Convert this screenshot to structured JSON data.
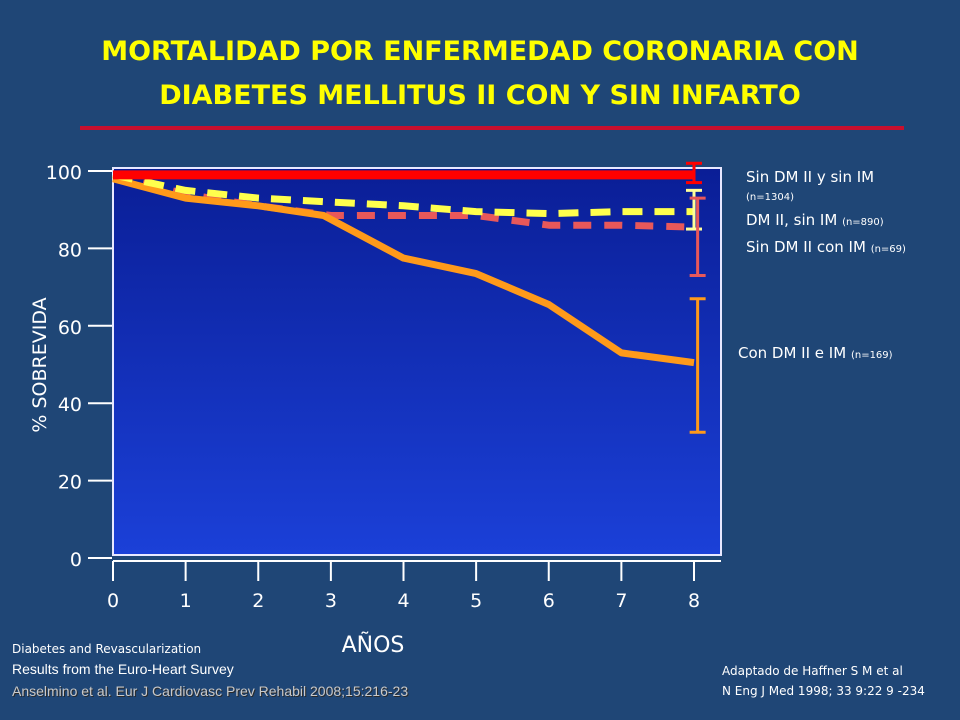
{
  "title": {
    "line1": "MORTALIDAD POR ENFERMEDAD CORONARIA CON",
    "line2": "DIABETES MELLITUS II CON Y SIN INFARTO"
  },
  "colors": {
    "background": "#1f4676",
    "title": "#ffff00",
    "rule": "#c8102e",
    "series_no_dm_no_mi": "#ff0000",
    "series_dm_no_mi": "#ffff4d",
    "series_no_dm_mi": "#e8585a",
    "series_dm_mi": "#ff9a1a"
  },
  "legend": [
    {
      "label": "Sin DM II y sin  IM",
      "n": "(n=1304)"
    },
    {
      "label": "DM II, sin  IM",
      "n": "(n=890)"
    },
    {
      "label": "Sin DM II  con IM",
      "n": "(n=69)"
    },
    {
      "label": "Con DM II e IM",
      "n": "(n=169)"
    }
  ],
  "chart_data": {
    "type": "line",
    "xlabel": "AÑOS",
    "ylabel": "% SOBREVIDA",
    "xlim": [
      0,
      8
    ],
    "ylim": [
      0,
      100
    ],
    "x_ticks": [
      "0",
      "1",
      "2",
      "3",
      "4",
      "5",
      "6",
      "7",
      "8"
    ],
    "y_ticks": [
      "0",
      "20",
      "40",
      "60",
      "80",
      "100"
    ],
    "series": [
      {
        "name": "Sin DM II y sin  IM (n=1304)",
        "color": "#ff0000",
        "style": "solid",
        "x": [
          0,
          8
        ],
        "y": [
          99,
          99
        ],
        "error_bar": {
          "x": 8,
          "low": 97,
          "high": 102
        }
      },
      {
        "name": "DM II, sin  IM (n=890)",
        "color": "#ffff4d",
        "style": "dashed",
        "x": [
          0,
          1,
          2,
          3,
          4,
          5,
          6,
          7,
          8
        ],
        "y": [
          99,
          95,
          93,
          92,
          91,
          89.5,
          89,
          89.5,
          89.5
        ],
        "error_bar": {
          "x": 8,
          "low": 85,
          "high": 95
        }
      },
      {
        "name": "Sin DM II  con IM (n=69)",
        "color": "#e8585a",
        "style": "dashed",
        "x": [
          0,
          1,
          2,
          3,
          4,
          5,
          6,
          7,
          8
        ],
        "y": [
          99,
          94,
          91,
          88.5,
          88.5,
          88.5,
          86,
          86,
          85.5
        ],
        "error_bar": {
          "x": 8.05,
          "low": 73,
          "high": 93
        }
      },
      {
        "name": "Con DM II e IM (n=169)",
        "color": "#ff9a1a",
        "style": "solid",
        "x": [
          0,
          1,
          2,
          2.9,
          4,
          5,
          6,
          7,
          8
        ],
        "y": [
          98,
          93,
          91,
          88.5,
          77.5,
          73.5,
          65.5,
          53,
          50.5
        ],
        "error_bar": {
          "x": 8.05,
          "low": 32.5,
          "high": 67
        }
      }
    ]
  },
  "footer": {
    "source_1": "Diabetes and Revascularization",
    "source_2": "Results from the Euro-Heart Survey",
    "source_3": "Anselmino et al. Eur J Cardiovasc Prev Rehabil  2008;15:216-23",
    "reference_1": "Adaptado de Haffner S M et al",
    "reference_2": "N Eng J Med 1998; 33 9:22 9 -234"
  }
}
